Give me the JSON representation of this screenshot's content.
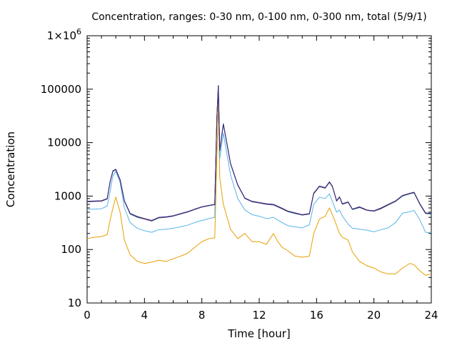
{
  "chart_data": {
    "type": "line",
    "title": "Concentration, ranges: 0-30 nm, 0-100 nm, 0-300 nm, total (5/9/1)",
    "xlabel": "Time [hour]",
    "ylabel": "Concentration",
    "xlim": [
      0,
      24
    ],
    "ylim": [
      10,
      1000000
    ],
    "yscale": "log",
    "grid": false,
    "x_ticks": [
      0,
      4,
      8,
      12,
      16,
      20,
      24
    ],
    "x_tick_labels": [
      "0",
      "4",
      "8",
      "12",
      "16",
      "20",
      "24"
    ],
    "y_ticks": [
      10,
      100,
      1000,
      10000,
      100000,
      1000000
    ],
    "y_tick_labels": [
      "10",
      "100",
      "1000",
      "10000",
      "100000",
      "1×10^6"
    ],
    "series": [
      {
        "color": "#e69f00",
        "points": [
          [
            0,
            160
          ],
          [
            0.5,
            170
          ],
          [
            1.0,
            175
          ],
          [
            1.4,
            190
          ],
          [
            1.6,
            350
          ],
          [
            1.8,
            600
          ],
          [
            2.0,
            960
          ],
          [
            2.3,
            500
          ],
          [
            2.6,
            150
          ],
          [
            3.0,
            80
          ],
          [
            3.5,
            60
          ],
          [
            4.0,
            55
          ],
          [
            4.5,
            58
          ],
          [
            5.0,
            63
          ],
          [
            5.5,
            60
          ],
          [
            6.0,
            67
          ],
          [
            6.5,
            75
          ],
          [
            7.0,
            85
          ],
          [
            7.5,
            110
          ],
          [
            8.0,
            140
          ],
          [
            8.5,
            160
          ],
          [
            8.9,
            165
          ],
          [
            9.05,
            5000
          ],
          [
            9.15,
            58000
          ],
          [
            9.25,
            2200
          ],
          [
            9.5,
            700
          ],
          [
            10.0,
            240
          ],
          [
            10.5,
            160
          ],
          [
            11.0,
            200
          ],
          [
            11.5,
            140
          ],
          [
            12.0,
            140
          ],
          [
            12.5,
            125
          ],
          [
            13.0,
            200
          ],
          [
            13.3,
            140
          ],
          [
            13.6,
            110
          ],
          [
            14.0,
            95
          ],
          [
            14.5,
            75
          ],
          [
            15.0,
            72
          ],
          [
            15.5,
            75
          ],
          [
            15.8,
            200
          ],
          [
            16.2,
            370
          ],
          [
            16.6,
            420
          ],
          [
            16.9,
            600
          ],
          [
            17.1,
            450
          ],
          [
            17.4,
            280
          ],
          [
            17.6,
            200
          ],
          [
            17.8,
            170
          ],
          [
            18.2,
            150
          ],
          [
            18.5,
            90
          ],
          [
            19.0,
            60
          ],
          [
            19.5,
            50
          ],
          [
            20.0,
            45
          ],
          [
            20.5,
            38
          ],
          [
            21.0,
            35
          ],
          [
            21.5,
            35
          ],
          [
            22.0,
            45
          ],
          [
            22.5,
            55
          ],
          [
            22.8,
            52
          ],
          [
            23.2,
            40
          ],
          [
            23.6,
            33
          ],
          [
            24,
            35
          ]
        ]
      },
      {
        "color": "#56b4e9",
        "points": [
          [
            0,
            560
          ],
          [
            0.5,
            570
          ],
          [
            1.0,
            580
          ],
          [
            1.4,
            650
          ],
          [
            1.6,
            1200
          ],
          [
            1.8,
            2400
          ],
          [
            2.0,
            2900
          ],
          [
            2.3,
            1800
          ],
          [
            2.6,
            600
          ],
          [
            3.0,
            320
          ],
          [
            3.5,
            250
          ],
          [
            4.0,
            225
          ],
          [
            4.5,
            210
          ],
          [
            5.0,
            235
          ],
          [
            5.5,
            240
          ],
          [
            6.0,
            250
          ],
          [
            6.5,
            265
          ],
          [
            7.0,
            285
          ],
          [
            7.5,
            320
          ],
          [
            8.0,
            350
          ],
          [
            8.5,
            380
          ],
          [
            8.9,
            400
          ],
          [
            9.05,
            28000
          ],
          [
            9.15,
            110000
          ],
          [
            9.25,
            5000
          ],
          [
            9.5,
            15000
          ],
          [
            10.0,
            2500
          ],
          [
            10.5,
            900
          ],
          [
            11.0,
            550
          ],
          [
            11.5,
            450
          ],
          [
            12.0,
            420
          ],
          [
            12.5,
            380
          ],
          [
            13.0,
            400
          ],
          [
            13.5,
            330
          ],
          [
            14.0,
            280
          ],
          [
            14.5,
            265
          ],
          [
            15.0,
            255
          ],
          [
            15.5,
            290
          ],
          [
            15.8,
            700
          ],
          [
            16.2,
            950
          ],
          [
            16.6,
            900
          ],
          [
            16.9,
            1100
          ],
          [
            17.1,
            800
          ],
          [
            17.4,
            500
          ],
          [
            17.6,
            550
          ],
          [
            17.8,
            420
          ],
          [
            18.2,
            300
          ],
          [
            18.5,
            250
          ],
          [
            19.0,
            240
          ],
          [
            19.5,
            230
          ],
          [
            20.0,
            215
          ],
          [
            20.5,
            235
          ],
          [
            21.0,
            255
          ],
          [
            21.5,
            320
          ],
          [
            22.0,
            480
          ],
          [
            22.5,
            510
          ],
          [
            22.8,
            540
          ],
          [
            23.2,
            360
          ],
          [
            23.6,
            210
          ],
          [
            24,
            205
          ]
        ]
      },
      {
        "color": "#009e73",
        "points": [
          [
            0,
            780
          ],
          [
            0.5,
            790
          ],
          [
            1.0,
            800
          ],
          [
            1.4,
            880
          ],
          [
            1.6,
            1800
          ],
          [
            1.8,
            2900
          ],
          [
            2.0,
            3100
          ],
          [
            2.3,
            2000
          ],
          [
            2.6,
            800
          ],
          [
            3.0,
            460
          ],
          [
            3.5,
            400
          ],
          [
            4.0,
            370
          ],
          [
            4.5,
            340
          ],
          [
            5.0,
            390
          ],
          [
            5.5,
            400
          ],
          [
            6.0,
            420
          ],
          [
            6.5,
            460
          ],
          [
            7.0,
            500
          ],
          [
            7.5,
            560
          ],
          [
            8.0,
            620
          ],
          [
            8.5,
            660
          ],
          [
            8.9,
            690
          ],
          [
            9.05,
            30000
          ],
          [
            9.15,
            115000
          ],
          [
            9.25,
            7000
          ],
          [
            9.5,
            22000
          ],
          [
            10.0,
            4000
          ],
          [
            10.5,
            1600
          ],
          [
            11.0,
            900
          ],
          [
            11.5,
            780
          ],
          [
            12.0,
            740
          ],
          [
            12.5,
            700
          ],
          [
            13.0,
            680
          ],
          [
            13.5,
            590
          ],
          [
            14.0,
            510
          ],
          [
            14.5,
            470
          ],
          [
            15.0,
            440
          ],
          [
            15.5,
            460
          ],
          [
            15.8,
            1100
          ],
          [
            16.2,
            1500
          ],
          [
            16.6,
            1400
          ],
          [
            16.9,
            1800
          ],
          [
            17.1,
            1500
          ],
          [
            17.4,
            800
          ],
          [
            17.6,
            950
          ],
          [
            17.8,
            700
          ],
          [
            18.2,
            760
          ],
          [
            18.5,
            560
          ],
          [
            19.0,
            610
          ],
          [
            19.5,
            540
          ],
          [
            20.0,
            520
          ],
          [
            20.5,
            580
          ],
          [
            21.0,
            680
          ],
          [
            21.5,
            790
          ],
          [
            22.0,
            1000
          ],
          [
            22.5,
            1100
          ],
          [
            22.8,
            1150
          ],
          [
            23.2,
            700
          ],
          [
            23.6,
            470
          ],
          [
            24,
            460
          ]
        ]
      },
      {
        "color": "#cc0099",
        "points": [
          [
            0,
            790
          ],
          [
            0.5,
            800
          ],
          [
            1.0,
            810
          ],
          [
            1.4,
            890
          ],
          [
            1.6,
            1820
          ],
          [
            1.8,
            2950
          ],
          [
            2.0,
            3150
          ],
          [
            2.3,
            2020
          ],
          [
            2.6,
            810
          ],
          [
            3.0,
            470
          ],
          [
            3.5,
            410
          ],
          [
            4.0,
            375
          ],
          [
            4.5,
            345
          ],
          [
            5.0,
            395
          ],
          [
            5.5,
            405
          ],
          [
            6.0,
            425
          ],
          [
            6.5,
            465
          ],
          [
            7.0,
            505
          ],
          [
            7.5,
            565
          ],
          [
            8.0,
            625
          ],
          [
            8.5,
            665
          ],
          [
            8.9,
            695
          ],
          [
            9.05,
            30200
          ],
          [
            9.15,
            116000
          ],
          [
            9.25,
            7100
          ],
          [
            9.5,
            22300
          ],
          [
            10.0,
            4050
          ],
          [
            10.5,
            1620
          ],
          [
            11.0,
            910
          ],
          [
            11.5,
            790
          ],
          [
            12.0,
            750
          ],
          [
            12.5,
            710
          ],
          [
            13.0,
            690
          ],
          [
            13.5,
            600
          ],
          [
            14.0,
            520
          ],
          [
            14.5,
            480
          ],
          [
            15.0,
            445
          ],
          [
            15.5,
            465
          ],
          [
            15.8,
            1120
          ],
          [
            16.2,
            1520
          ],
          [
            16.6,
            1420
          ],
          [
            16.9,
            1830
          ],
          [
            17.1,
            1520
          ],
          [
            17.4,
            810
          ],
          [
            17.6,
            960
          ],
          [
            17.8,
            710
          ],
          [
            18.2,
            770
          ],
          [
            18.5,
            565
          ],
          [
            19.0,
            620
          ],
          [
            19.5,
            545
          ],
          [
            20.0,
            525
          ],
          [
            20.5,
            590
          ],
          [
            21.0,
            690
          ],
          [
            21.5,
            800
          ],
          [
            22.0,
            1020
          ],
          [
            22.5,
            1120
          ],
          [
            22.8,
            1170
          ],
          [
            23.2,
            710
          ],
          [
            23.6,
            480
          ],
          [
            24,
            470
          ]
        ]
      },
      {
        "color": "#2c2c7a",
        "points": [
          [
            0,
            800
          ],
          [
            0.5,
            810
          ],
          [
            1.0,
            820
          ],
          [
            1.4,
            900
          ],
          [
            1.6,
            1850
          ],
          [
            1.8,
            2980
          ],
          [
            2.0,
            3180
          ],
          [
            2.3,
            2040
          ],
          [
            2.6,
            820
          ],
          [
            3.0,
            475
          ],
          [
            3.5,
            415
          ],
          [
            4.0,
            380
          ],
          [
            4.5,
            350
          ],
          [
            5.0,
            400
          ],
          [
            5.5,
            410
          ],
          [
            6.0,
            430
          ],
          [
            6.5,
            470
          ],
          [
            7.0,
            510
          ],
          [
            7.5,
            570
          ],
          [
            8.0,
            630
          ],
          [
            8.5,
            670
          ],
          [
            8.9,
            700
          ],
          [
            9.05,
            30500
          ],
          [
            9.15,
            117000
          ],
          [
            9.25,
            7200
          ],
          [
            9.5,
            22500
          ],
          [
            10.0,
            4100
          ],
          [
            10.5,
            1640
          ],
          [
            11.0,
            920
          ],
          [
            11.5,
            800
          ],
          [
            12.0,
            760
          ],
          [
            12.5,
            720
          ],
          [
            13.0,
            700
          ],
          [
            13.5,
            610
          ],
          [
            14.0,
            525
          ],
          [
            14.5,
            485
          ],
          [
            15.0,
            450
          ],
          [
            15.5,
            470
          ],
          [
            15.8,
            1140
          ],
          [
            16.2,
            1540
          ],
          [
            16.6,
            1440
          ],
          [
            16.9,
            1850
          ],
          [
            17.1,
            1540
          ],
          [
            17.4,
            820
          ],
          [
            17.6,
            970
          ],
          [
            17.8,
            720
          ],
          [
            18.2,
            780
          ],
          [
            18.5,
            570
          ],
          [
            19.0,
            630
          ],
          [
            19.5,
            550
          ],
          [
            20.0,
            530
          ],
          [
            20.5,
            600
          ],
          [
            21.0,
            700
          ],
          [
            21.5,
            810
          ],
          [
            22.0,
            1030
          ],
          [
            22.5,
            1130
          ],
          [
            22.8,
            1180
          ],
          [
            23.2,
            720
          ],
          [
            23.6,
            485
          ],
          [
            24,
            475
          ]
        ]
      }
    ]
  }
}
